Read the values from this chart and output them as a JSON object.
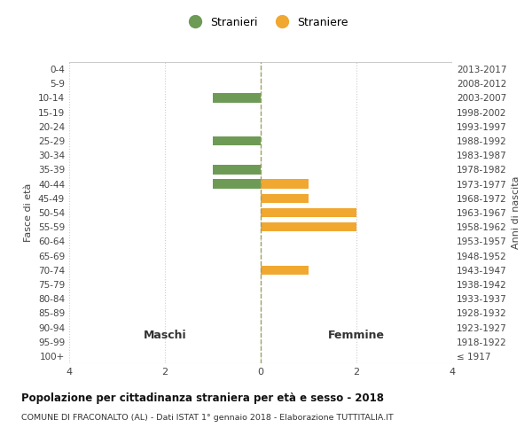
{
  "age_groups": [
    "100+",
    "95-99",
    "90-94",
    "85-89",
    "80-84",
    "75-79",
    "70-74",
    "65-69",
    "60-64",
    "55-59",
    "50-54",
    "45-49",
    "40-44",
    "35-39",
    "30-34",
    "25-29",
    "20-24",
    "15-19",
    "10-14",
    "5-9",
    "0-4"
  ],
  "birth_years": [
    "≤ 1917",
    "1918-1922",
    "1923-1927",
    "1928-1932",
    "1933-1937",
    "1938-1942",
    "1943-1947",
    "1948-1952",
    "1953-1957",
    "1958-1962",
    "1963-1967",
    "1968-1972",
    "1973-1977",
    "1978-1982",
    "1983-1987",
    "1988-1992",
    "1993-1997",
    "1998-2002",
    "2003-2007",
    "2008-2012",
    "2013-2017"
  ],
  "maschi": [
    0,
    0,
    0,
    0,
    0,
    0,
    0,
    0,
    0,
    0,
    0,
    0,
    1,
    1,
    0,
    1,
    0,
    0,
    1,
    0,
    0
  ],
  "femmine": [
    0,
    0,
    0,
    0,
    0,
    0,
    1,
    0,
    0,
    2,
    2,
    1,
    1,
    0,
    0,
    0,
    0,
    0,
    0,
    0,
    0
  ],
  "maschi_color": "#6d9b56",
  "femmine_color": "#f0a830",
  "title": "Popolazione per cittadinanza straniera per età e sesso - 2018",
  "subtitle": "COMUNE DI FRACONALTO (AL) - Dati ISTAT 1° gennaio 2018 - Elaborazione TUTTITALIA.IT",
  "xlabel_left": "Maschi",
  "xlabel_right": "Femmine",
  "ylabel_left": "Fasce di età",
  "ylabel_right": "Anni di nascita",
  "legend_maschi": "Stranieri",
  "legend_femmine": "Straniere",
  "xlim": 4,
  "xticks": [
    -4,
    -2,
    0,
    2,
    4
  ],
  "xtick_labels": [
    "4",
    "2",
    "0",
    "2",
    "4"
  ],
  "background_color": "#ffffff",
  "grid_color": "#cccccc",
  "bar_height": 0.65,
  "vline_color": "#a0a060",
  "vline_style": "--"
}
